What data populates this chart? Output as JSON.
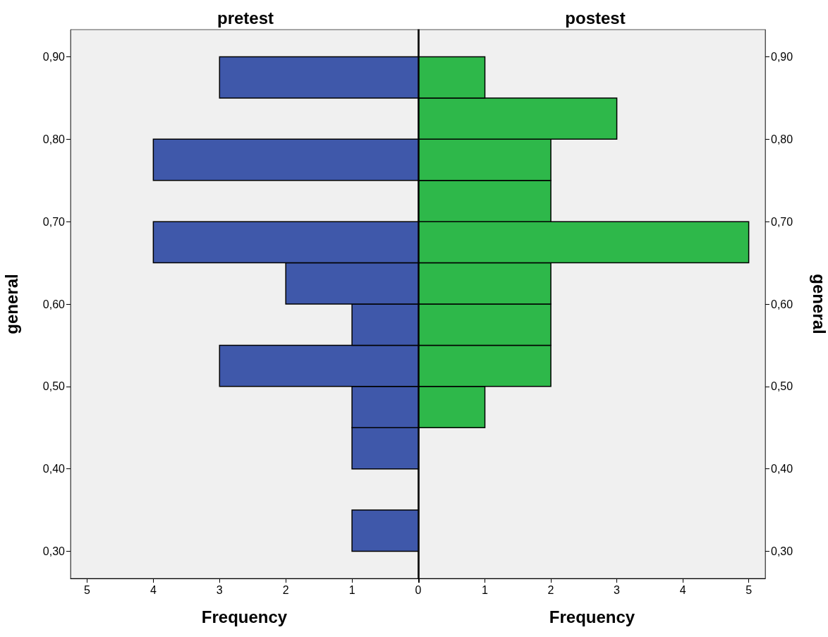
{
  "chart_data": [
    {
      "type": "histogram",
      "orientation": "horizontal",
      "title": "pretest",
      "xlabel": "Frequency",
      "ylabel": "general",
      "color": "#3f58aa",
      "bins": [
        0.3,
        0.35,
        0.4,
        0.45,
        0.5,
        0.55,
        0.6,
        0.65,
        0.7,
        0.75,
        0.8,
        0.85,
        0.9
      ],
      "values": [
        1,
        0,
        1,
        1,
        3,
        1,
        2,
        4,
        0,
        4,
        0,
        3
      ],
      "xlim": [
        5.25,
        0
      ],
      "xticks": [
        5,
        4,
        3,
        2,
        1,
        0
      ],
      "ylim": [
        0.267,
        0.933
      ],
      "yticks": [
        {
          "value": 0.3,
          "label": "0,30"
        },
        {
          "value": 0.4,
          "label": "0,40"
        },
        {
          "value": 0.5,
          "label": "0,50"
        },
        {
          "value": 0.6,
          "label": "0,60"
        },
        {
          "value": 0.7,
          "label": "0,70"
        },
        {
          "value": 0.8,
          "label": "0,80"
        },
        {
          "value": 0.9,
          "label": "0,90"
        }
      ]
    },
    {
      "type": "histogram",
      "orientation": "horizontal",
      "title": "postest",
      "xlabel": "Frequency",
      "ylabel": "general",
      "color": "#2eb84a",
      "bins": [
        0.3,
        0.35,
        0.4,
        0.45,
        0.5,
        0.55,
        0.6,
        0.65,
        0.7,
        0.75,
        0.8,
        0.85,
        0.9
      ],
      "values": [
        0,
        0,
        0,
        1,
        2,
        2,
        2,
        5,
        2,
        2,
        3,
        1
      ],
      "xlim": [
        0,
        5.25
      ],
      "xticks": [
        {
          "value": 0,
          "label": null
        },
        1,
        2,
        3,
        4,
        5
      ],
      "ylim": [
        0.267,
        0.933
      ],
      "yticks": [
        {
          "value": 0.3,
          "label": "0,30"
        },
        {
          "value": 0.4,
          "label": "0,40"
        },
        {
          "value": 0.5,
          "label": "0,50"
        },
        {
          "value": 0.6,
          "label": "0,60"
        },
        {
          "value": 0.7,
          "label": "0,70"
        },
        {
          "value": 0.8,
          "label": "0,80"
        },
        {
          "value": 0.9,
          "label": "0,90"
        }
      ]
    }
  ]
}
